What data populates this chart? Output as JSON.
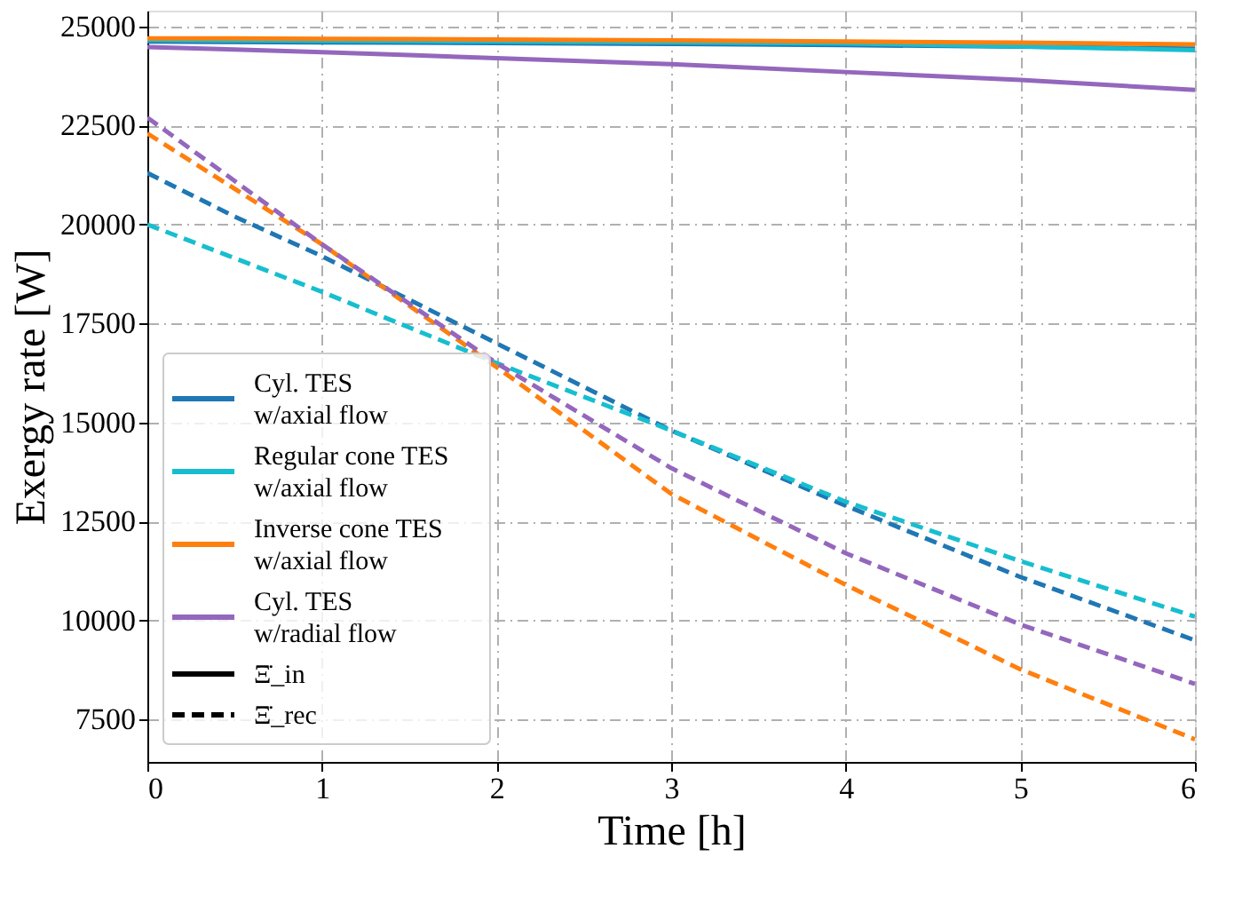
{
  "chart_data": {
    "type": "line",
    "xlabel": "Time [h]",
    "ylabel": "Exergy rate [W]",
    "x": [
      0,
      0.5,
      1,
      1.5,
      2,
      3,
      4,
      5,
      6
    ],
    "xlim": [
      0,
      6
    ],
    "xticks": [
      0,
      1,
      2,
      3,
      4,
      5,
      6
    ],
    "ylim": [
      6430,
      25400
    ],
    "yticks": [
      7500,
      10000,
      12500,
      15000,
      17500,
      20000,
      22500,
      25000
    ],
    "grid": true,
    "legend": "bottom left",
    "annotations": [
      "Ξ̇_in",
      "Ξ̇_rec"
    ],
    "series": [
      {
        "name": "Cyl. TES\nw/axial flow",
        "color": "#1f77b4",
        "line_style": "solid",
        "values": [
          24620,
          24610,
          24600,
          24590,
          24580,
          24560,
          24530,
          24490,
          24440
        ]
      },
      {
        "name": "Regular cone TES\nw/axial flow",
        "color": "#17becf",
        "line_style": "solid",
        "values": [
          24660,
          24650,
          24640,
          24630,
          24620,
          24600,
          24570,
          24500,
          24400
        ]
      },
      {
        "name": "Inverse cone TES\nw/axial flow",
        "color": "#ff7f0e",
        "line_style": "solid",
        "values": [
          24700,
          24700,
          24690,
          24680,
          24670,
          24650,
          24620,
          24590,
          24550
        ]
      },
      {
        "name": "Cyl. TES\nw/radial flow",
        "color": "#9467bd",
        "line_style": "solid",
        "values": [
          24480,
          24420,
          24350,
          24280,
          24200,
          24050,
          23850,
          23650,
          23400
        ]
      },
      {
        "color": "#1f77b4",
        "line_style": "dashed",
        "values": [
          21300,
          20200,
          19200,
          18100,
          17000,
          14800,
          12900,
          11100,
          9500
        ]
      },
      {
        "color": "#17becf",
        "line_style": "dashed",
        "values": [
          20000,
          19150,
          18300,
          17400,
          16500,
          14800,
          13000,
          11500,
          10100
        ]
      },
      {
        "color": "#ff7f0e",
        "line_style": "dashed",
        "values": [
          22300,
          20900,
          19500,
          17950,
          16400,
          13200,
          10900,
          8770,
          7000
        ]
      },
      {
        "color": "#9467bd",
        "line_style": "dashed",
        "values": [
          22700,
          21100,
          19500,
          18000,
          16500,
          13850,
          11700,
          9900,
          8400
        ]
      }
    ]
  }
}
